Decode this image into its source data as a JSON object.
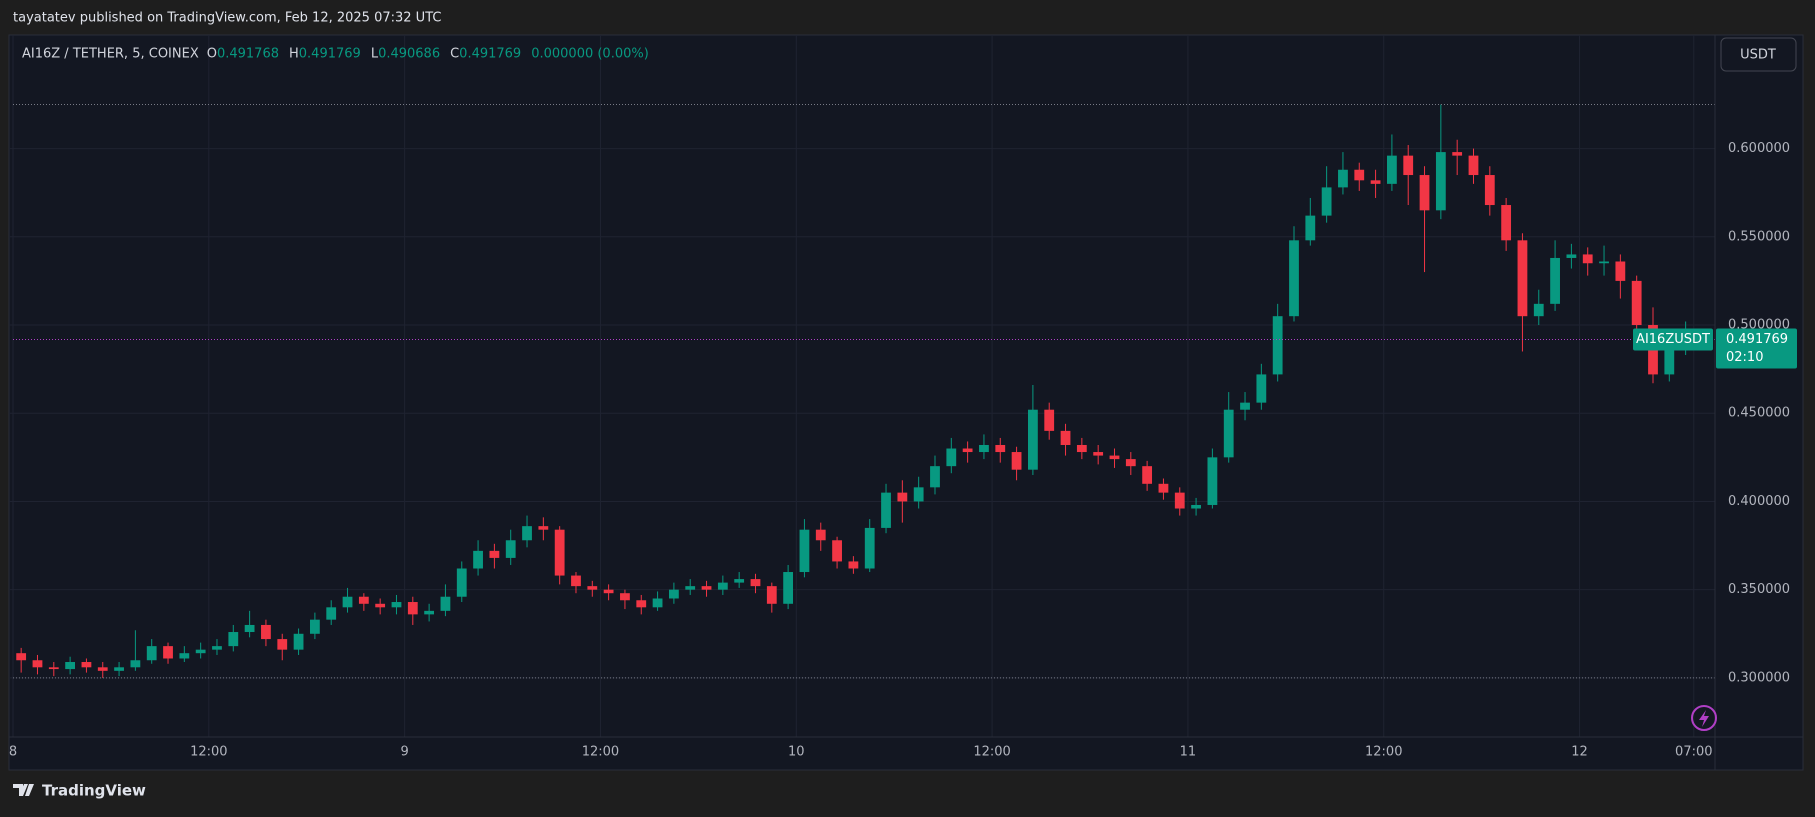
{
  "publisher": "tayatatev published on TradingView.com, Feb 12, 2025 07:32 UTC",
  "footer": "TradingView",
  "chart_data": {
    "type": "candlestick",
    "title": "AI16Z / TETHER, 5, COINEX",
    "legend": [
      {
        "label": "O",
        "value": 0.491768
      },
      {
        "label": "H",
        "value": 0.491769
      },
      {
        "label": "L",
        "value": 0.490686
      },
      {
        "label": "C",
        "value": 0.491769
      }
    ],
    "change": "0.000000 (0.00%)",
    "currency": "USDT",
    "symbol": "AI16ZUSDT",
    "countdown": "02:10",
    "up_color": "#089981",
    "down_color": "#f23645",
    "open": [
      0.314,
      0.31,
      0.306,
      0.305,
      0.309,
      0.306,
      0.304,
      0.306,
      0.31,
      0.318,
      0.311,
      0.314,
      0.316,
      0.318,
      0.326,
      0.33,
      0.322,
      0.316,
      0.325,
      0.333,
      0.34,
      0.346,
      0.342,
      0.34,
      0.343,
      0.336,
      0.338,
      0.346,
      0.362,
      0.372,
      0.368,
      0.378,
      0.386,
      0.384,
      0.358,
      0.352,
      0.35,
      0.348,
      0.344,
      0.34,
      0.345,
      0.35,
      0.352,
      0.35,
      0.354,
      0.356,
      0.352,
      0.342,
      0.36,
      0.384,
      0.378,
      0.366,
      0.362,
      0.385,
      0.405,
      0.4,
      0.408,
      0.42,
      0.43,
      0.428,
      0.432,
      0.428,
      0.418,
      0.452,
      0.44,
      0.432,
      0.428,
      0.426,
      0.424,
      0.42,
      0.41,
      0.405,
      0.396,
      0.398,
      0.425,
      0.452,
      0.456,
      0.472,
      0.505,
      0.548,
      0.562,
      0.578,
      0.588,
      0.582,
      0.58,
      0.596,
      0.585,
      0.565,
      0.598,
      0.596,
      0.585,
      0.568,
      0.548,
      0.505,
      0.512,
      0.538,
      0.54,
      0.535,
      0.536,
      0.525,
      0.5,
      0.472,
      0.488
    ],
    "high": [
      0.317,
      0.313,
      0.309,
      0.312,
      0.311,
      0.309,
      0.309,
      0.327,
      0.322,
      0.32,
      0.318,
      0.32,
      0.322,
      0.33,
      0.338,
      0.333,
      0.325,
      0.328,
      0.337,
      0.344,
      0.351,
      0.348,
      0.345,
      0.347,
      0.346,
      0.342,
      0.353,
      0.366,
      0.378,
      0.376,
      0.384,
      0.392,
      0.391,
      0.386,
      0.36,
      0.355,
      0.353,
      0.35,
      0.347,
      0.349,
      0.354,
      0.356,
      0.355,
      0.358,
      0.36,
      0.359,
      0.354,
      0.364,
      0.39,
      0.388,
      0.38,
      0.369,
      0.39,
      0.41,
      0.412,
      0.414,
      0.426,
      0.436,
      0.434,
      0.438,
      0.436,
      0.431,
      0.466,
      0.456,
      0.444,
      0.436,
      0.432,
      0.43,
      0.428,
      0.423,
      0.413,
      0.408,
      0.402,
      0.43,
      0.462,
      0.462,
      0.478,
      0.512,
      0.556,
      0.572,
      0.59,
      0.598,
      0.592,
      0.588,
      0.608,
      0.602,
      0.59,
      0.625,
      0.605,
      0.6,
      0.59,
      0.572,
      0.552,
      0.52,
      0.548,
      0.546,
      0.544,
      0.545,
      0.54,
      0.528,
      0.51,
      0.495,
      0.502
    ],
    "low": [
      0.303,
      0.302,
      0.301,
      0.302,
      0.303,
      0.3,
      0.301,
      0.304,
      0.308,
      0.308,
      0.309,
      0.311,
      0.313,
      0.315,
      0.323,
      0.318,
      0.31,
      0.313,
      0.322,
      0.33,
      0.337,
      0.338,
      0.336,
      0.336,
      0.33,
      0.332,
      0.335,
      0.343,
      0.358,
      0.362,
      0.364,
      0.374,
      0.378,
      0.353,
      0.348,
      0.346,
      0.344,
      0.339,
      0.336,
      0.338,
      0.342,
      0.347,
      0.346,
      0.347,
      0.351,
      0.348,
      0.337,
      0.339,
      0.357,
      0.372,
      0.362,
      0.359,
      0.36,
      0.382,
      0.388,
      0.396,
      0.404,
      0.416,
      0.422,
      0.424,
      0.422,
      0.412,
      0.415,
      0.435,
      0.426,
      0.424,
      0.421,
      0.419,
      0.415,
      0.406,
      0.401,
      0.392,
      0.392,
      0.396,
      0.422,
      0.446,
      0.452,
      0.468,
      0.502,
      0.545,
      0.558,
      0.574,
      0.576,
      0.572,
      0.576,
      0.568,
      0.53,
      0.56,
      0.585,
      0.58,
      0.562,
      0.542,
      0.485,
      0.5,
      0.508,
      0.532,
      0.528,
      0.528,
      0.515,
      0.495,
      0.467,
      0.468,
      0.483
    ],
    "close": [
      0.31,
      0.306,
      0.305,
      0.309,
      0.306,
      0.304,
      0.306,
      0.31,
      0.318,
      0.311,
      0.314,
      0.316,
      0.318,
      0.326,
      0.33,
      0.322,
      0.316,
      0.325,
      0.333,
      0.34,
      0.346,
      0.342,
      0.34,
      0.343,
      0.336,
      0.338,
      0.346,
      0.362,
      0.372,
      0.368,
      0.378,
      0.386,
      0.384,
      0.358,
      0.352,
      0.35,
      0.348,
      0.344,
      0.34,
      0.345,
      0.35,
      0.352,
      0.35,
      0.354,
      0.356,
      0.352,
      0.342,
      0.36,
      0.384,
      0.378,
      0.366,
      0.362,
      0.385,
      0.405,
      0.4,
      0.408,
      0.42,
      0.43,
      0.428,
      0.432,
      0.428,
      0.418,
      0.452,
      0.44,
      0.432,
      0.428,
      0.426,
      0.424,
      0.42,
      0.41,
      0.405,
      0.396,
      0.398,
      0.425,
      0.452,
      0.456,
      0.472,
      0.505,
      0.548,
      0.562,
      0.578,
      0.588,
      0.582,
      0.58,
      0.596,
      0.585,
      0.565,
      0.598,
      0.596,
      0.585,
      0.568,
      0.548,
      0.505,
      0.512,
      0.538,
      0.54,
      0.535,
      0.536,
      0.525,
      0.5,
      0.472,
      0.488,
      0.491769
    ],
    "xlim": [
      0,
      104.3
    ],
    "xticks": [
      {
        "value": 0,
        "label": "8"
      },
      {
        "value": 12,
        "label": "12:00"
      },
      {
        "value": 24,
        "label": "9"
      },
      {
        "value": 36,
        "label": "12:00"
      },
      {
        "value": 48,
        "label": "10"
      },
      {
        "value": 60,
        "label": "12:00"
      },
      {
        "value": 72,
        "label": "11"
      },
      {
        "value": 84,
        "label": "12:00"
      },
      {
        "value": 96,
        "label": "12"
      },
      {
        "value": 103,
        "label": "07:00"
      }
    ],
    "ylim": [
      0.2665,
      0.6638
    ],
    "yticks": [
      {
        "value": 0.3,
        "label": "0.300000"
      },
      {
        "value": 0.35,
        "label": "0.350000"
      },
      {
        "value": 0.4,
        "label": "0.400000"
      },
      {
        "value": 0.45,
        "label": "0.450000"
      },
      {
        "value": 0.5,
        "label": "0.500000"
      },
      {
        "value": 0.55,
        "label": "0.550000"
      },
      {
        "value": 0.6,
        "label": "0.600000"
      }
    ],
    "grid": true
  }
}
